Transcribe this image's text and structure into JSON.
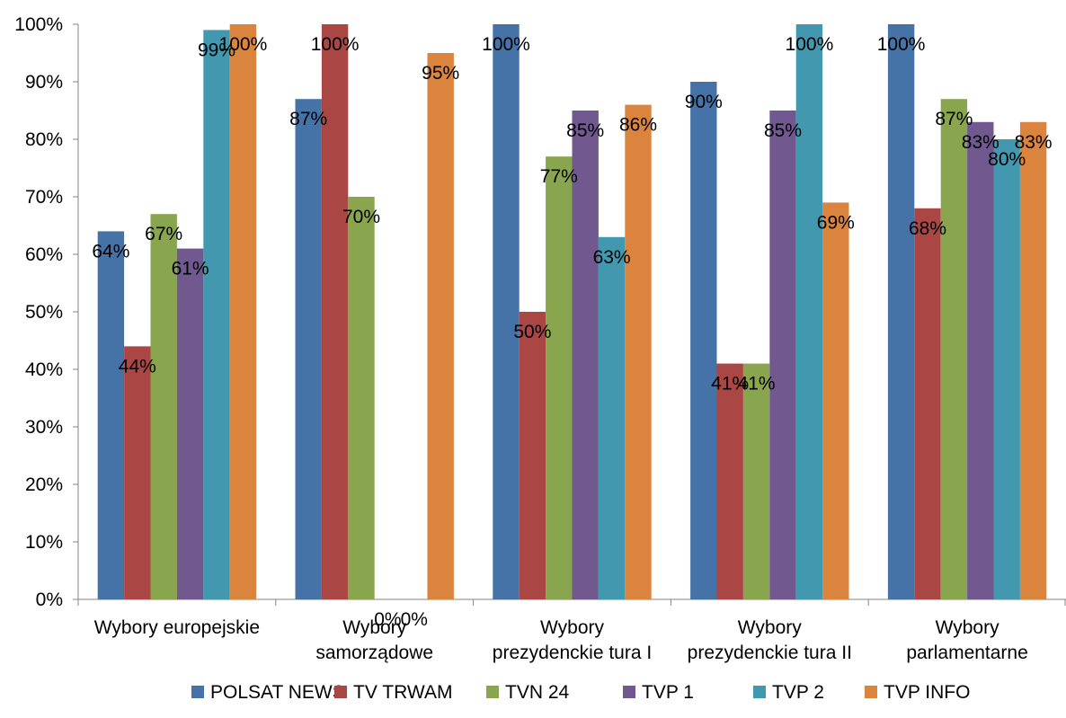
{
  "chart_data": {
    "type": "bar",
    "categories": [
      [
        "Wybory europejskie"
      ],
      [
        "Wybory",
        "samorządowe"
      ],
      [
        "Wybory",
        "prezydenckie tura I"
      ],
      [
        "Wybory",
        "prezydenckie tura II"
      ],
      [
        "Wybory",
        "parlamentarne"
      ]
    ],
    "series": [
      {
        "name": "POLSAT NEWS",
        "color": "#4572A7",
        "values": [
          0.64,
          0.87,
          1.0,
          0.9,
          1.0
        ],
        "labels": [
          "64%",
          "87%",
          "100%",
          "90%",
          "100%"
        ]
      },
      {
        "name": "TV TRWAM",
        "color": "#AA4643",
        "values": [
          0.44,
          1.0,
          0.5,
          0.41,
          0.68
        ],
        "labels": [
          "44%",
          "100%",
          "50%",
          "41%",
          "68%"
        ]
      },
      {
        "name": "TVN 24",
        "color": "#89A54E",
        "values": [
          0.67,
          0.7,
          0.77,
          0.41,
          0.87
        ],
        "labels": [
          "67%",
          "70%",
          "77%",
          "41%",
          "87%"
        ]
      },
      {
        "name": "TVP 1",
        "color": "#71588F",
        "values": [
          0.61,
          0.0,
          0.85,
          0.85,
          0.83
        ],
        "labels": [
          "61%",
          "0%",
          "85%",
          "85%",
          "83%"
        ]
      },
      {
        "name": "TVP 2",
        "color": "#4198AF",
        "values": [
          0.99,
          0.0,
          0.63,
          1.0,
          0.8
        ],
        "labels": [
          "99%",
          "0%",
          "63%",
          "100%",
          "80%"
        ]
      },
      {
        "name": "TVP INFO",
        "color": "#DB843D",
        "values": [
          1.0,
          0.95,
          0.86,
          0.69,
          0.83
        ],
        "labels": [
          "100%",
          "95%",
          "86%",
          "69%",
          "83%"
        ]
      }
    ],
    "y_ticks": [
      "0%",
      "10%",
      "20%",
      "30%",
      "40%",
      "50%",
      "60%",
      "70%",
      "80%",
      "90%",
      "100%"
    ],
    "ylim": [
      0,
      1
    ],
    "grid": false,
    "legend_position": "bottom",
    "axis_color": "#868686"
  }
}
